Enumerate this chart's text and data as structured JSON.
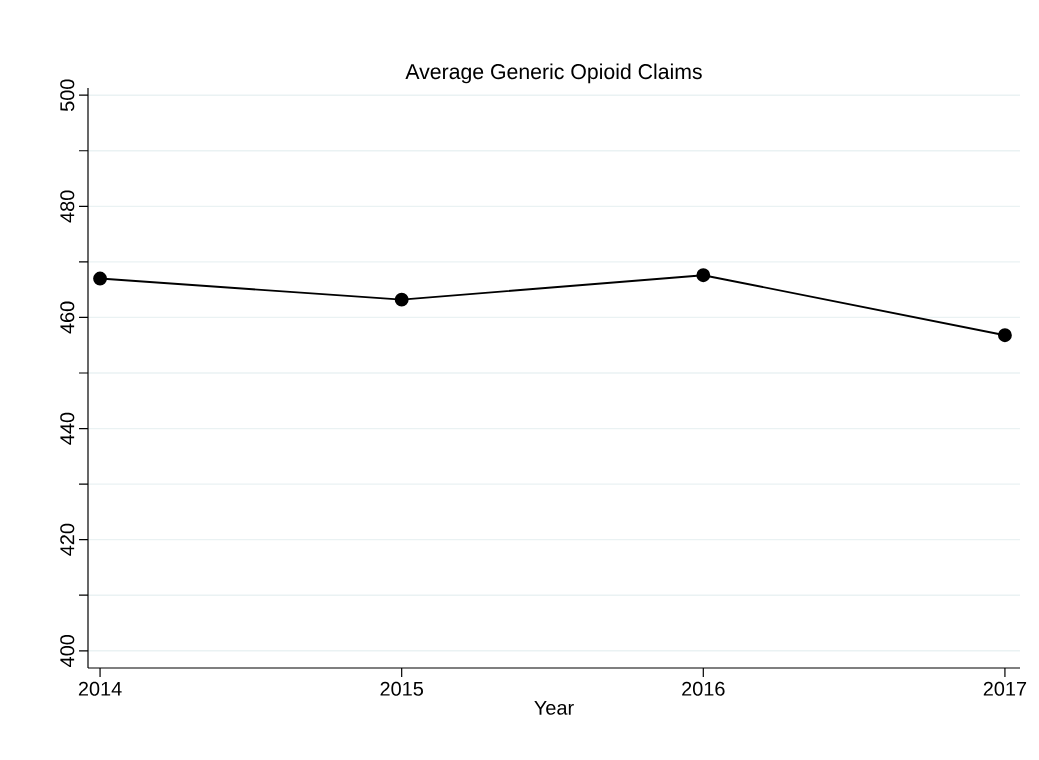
{
  "chart_data": {
    "type": "line",
    "title": "Average Generic Opioid Claims",
    "xlabel": "Year",
    "x": [
      2014,
      2015,
      2016,
      2017
    ],
    "series": [
      {
        "color": "#000000",
        "values": [
          467.0,
          463.2,
          467.6,
          456.8
        ]
      }
    ],
    "xlim": [
      2013.96,
      2017.05
    ],
    "xticks": [
      2014,
      2015,
      2016,
      2017
    ],
    "ylim": [
      396.9,
      501.3
    ],
    "yticks": [
      400,
      {
        "value": 410,
        "label": null
      },
      420,
      {
        "value": 430,
        "label": null
      },
      440,
      {
        "value": 450,
        "label": null
      },
      460,
      {
        "value": 470,
        "label": null
      },
      480,
      {
        "value": 490,
        "label": null
      },
      500
    ],
    "grid": "y",
    "marker": "circle",
    "line_style": "solid"
  }
}
